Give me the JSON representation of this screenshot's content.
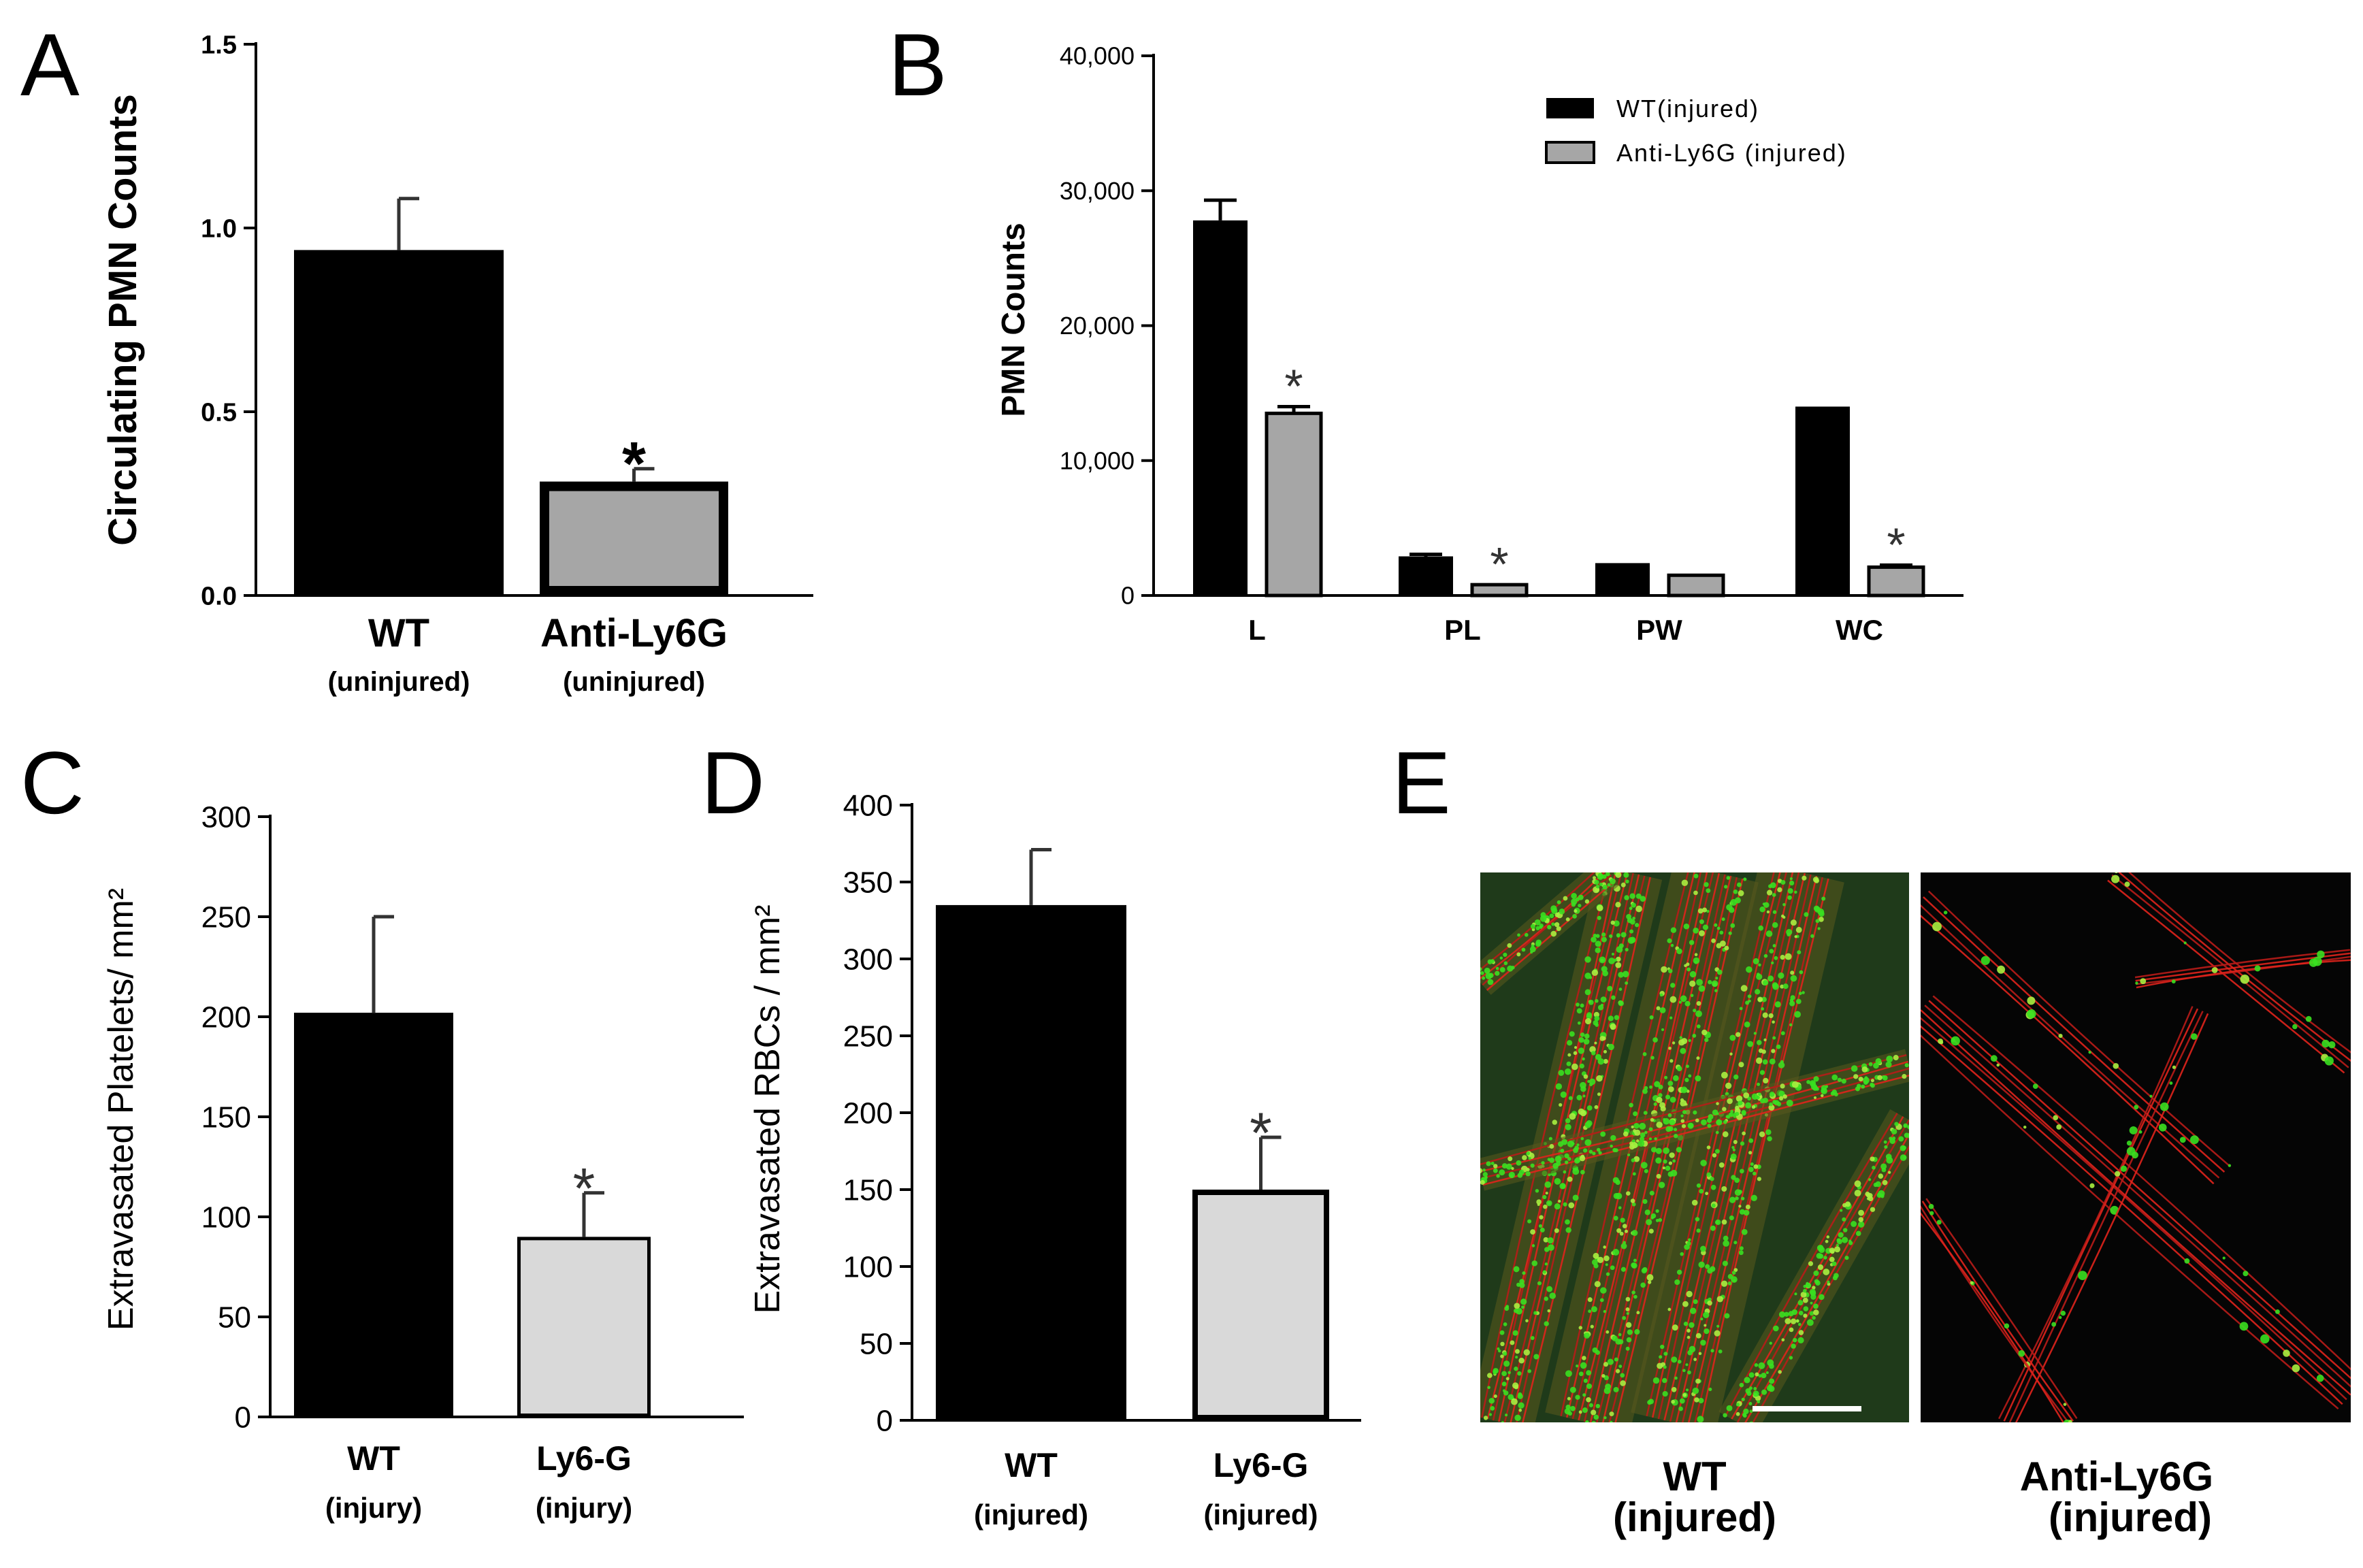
{
  "chart_data": [
    {
      "panel": "A",
      "type": "bar",
      "categories": [
        "WT",
        "Anti-Ly6G"
      ],
      "category_sublabels": [
        "(uninjured)",
        "(uninjured)"
      ],
      "values": [
        0.94,
        0.31
      ],
      "errors": [
        0.14,
        0.035
      ],
      "significance": [
        "",
        "*"
      ],
      "colors": [
        "#000000",
        "#a6a6a6"
      ],
      "ylabel": "Circulating PMN Counts",
      "ylim": [
        0,
        1.5
      ],
      "yticks": [
        "0.0",
        "0.5",
        "1.0",
        "1.5"
      ],
      "ytick_values": [
        0,
        0.5,
        1.0,
        1.5
      ]
    },
    {
      "panel": "B",
      "type": "bar",
      "categories": [
        "L",
        "PL",
        "PW",
        "WC"
      ],
      "series": [
        {
          "name": "WT(injured)",
          "color": "#000000",
          "values": [
            27800,
            2900,
            2400,
            14000
          ],
          "errors": [
            1500,
            150,
            0,
            0
          ]
        },
        {
          "name": "Anti-Ly6G (injured)",
          "color": "#a6a6a6",
          "values": [
            13500,
            800,
            1500,
            2100
          ],
          "errors": [
            500,
            0,
            0,
            150
          ]
        }
      ],
      "significance": [
        "*",
        "*",
        "",
        "*"
      ],
      "ylabel": "PMN Counts",
      "ylim": [
        0,
        40000
      ],
      "yticks": [
        "0",
        "10,000",
        "20,000",
        "30,000",
        "40,000"
      ],
      "ytick_values": [
        0,
        10000,
        20000,
        30000,
        40000
      ],
      "legend": "top-right"
    },
    {
      "panel": "C",
      "type": "bar",
      "categories": [
        "WT",
        "Ly6-G"
      ],
      "category_sublabels": [
        "(injury)",
        "(injury)"
      ],
      "values": [
        202,
        90
      ],
      "errors": [
        48,
        22
      ],
      "significance": [
        "",
        "*"
      ],
      "colors": [
        "#000000",
        "#d9d9d9"
      ],
      "ylabel": "Extravasated Platelets/ mm²",
      "ylim": [
        0,
        300
      ],
      "yticks": [
        "0",
        "50",
        "100",
        "150",
        "200",
        "250",
        "300"
      ],
      "ytick_values": [
        0,
        50,
        100,
        150,
        200,
        250,
        300
      ]
    },
    {
      "panel": "D",
      "type": "bar",
      "categories": [
        "WT",
        "Ly6-G"
      ],
      "category_sublabels": [
        "(injured)",
        "(injured)"
      ],
      "values": [
        335,
        150
      ],
      "errors": [
        36,
        34
      ],
      "significance": [
        "",
        "*"
      ],
      "colors": [
        "#000000",
        "#d9d9d9"
      ],
      "ylabel": "Extravasated RBCs / mm²",
      "ylim": [
        0,
        400
      ],
      "yticks": [
        "0",
        "50",
        "100",
        "150",
        "200",
        "250",
        "300",
        "350",
        "400"
      ],
      "ytick_values": [
        0,
        50,
        100,
        150,
        200,
        250,
        300,
        350,
        400
      ]
    }
  ],
  "panel_e": {
    "letter": "E",
    "images": [
      {
        "caption_line1": "WT",
        "caption_line2": "(injured)"
      },
      {
        "caption_line1": "Anti-Ly6G",
        "caption_line2": "(injured)"
      }
    ]
  }
}
